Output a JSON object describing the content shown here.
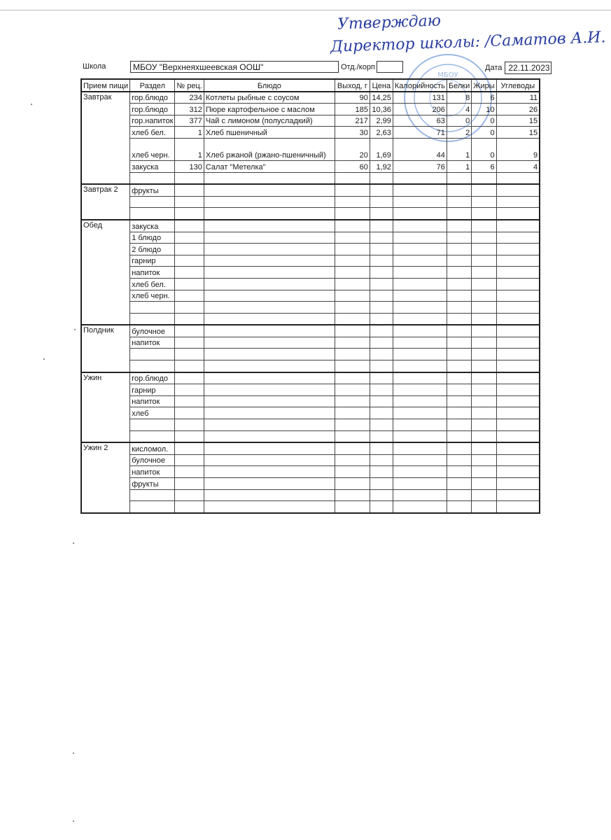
{
  "approval": {
    "line1": "Утверждаю",
    "line2": "Директор школы: /Саматов А.И."
  },
  "header": {
    "school_label": "Школа",
    "school_value": "МБОУ \"Верхнеяхшеевская ООШ\"",
    "dept_label": "Отд./корп",
    "dept_value": "",
    "date_label": "Дата",
    "date_value": "22.11.2023"
  },
  "stamp": {
    "text": "МБОУ",
    "color": "#4a7fd0"
  },
  "table": {
    "columns": [
      "Прием пищи",
      "Раздел",
      "№ рец.",
      "Блюдо",
      "Выход, г",
      "Цена",
      "Калорийность",
      "Белки",
      "Жиры",
      "Углеводы"
    ],
    "blocks": [
      {
        "meal": "Завтрак",
        "rows": [
          {
            "section": "гор.блюдо",
            "recipe": "234",
            "dish": "Котлеты рыбные с соусом",
            "yield": "90",
            "price": "14,25",
            "kcal": "131",
            "protein": "8",
            "fat": "6",
            "carbs": "11"
          },
          {
            "section": "гор.блюдо",
            "recipe": "312",
            "dish": "Пюре картофельное с маслом",
            "yield": "185",
            "price": "10,36",
            "kcal": "206",
            "protein": "4",
            "fat": "10",
            "carbs": "26"
          },
          {
            "section": "гор.напиток",
            "recipe": "377",
            "dish": "Чай с лимоном (полусладкий)",
            "yield": "217",
            "price": "2,99",
            "kcal": "63",
            "protein": "0",
            "fat": "0",
            "carbs": "15"
          },
          {
            "section": "хлеб бел.",
            "recipe": "1",
            "dish": "Хлеб пшеничный",
            "yield": "30",
            "price": "2,63",
            "kcal": "71",
            "protein": "2",
            "fat": "0",
            "carbs": "15"
          },
          {
            "section": "хлеб черн.",
            "recipe": "1",
            "dish": "Хлеб ржаной (ржано-пшеничный)",
            "yield": "20",
            "price": "1,69",
            "kcal": "44",
            "protein": "1",
            "fat": "0",
            "carbs": "9",
            "tall": true
          },
          {
            "section": "закуска",
            "recipe": "130",
            "dish": "Салат \"Метелка\"",
            "yield": "60",
            "price": "1,92",
            "kcal": "76",
            "protein": "1",
            "fat": "6",
            "carbs": "4"
          },
          {
            "section": ""
          }
        ]
      },
      {
        "meal": "Завтрак 2",
        "rows": [
          {
            "section": "фрукты"
          },
          {
            "section": ""
          },
          {
            "section": ""
          }
        ]
      },
      {
        "meal": "Обед",
        "rows": [
          {
            "section": "закуска"
          },
          {
            "section": "1 блюдо"
          },
          {
            "section": "2 блюдо"
          },
          {
            "section": "гарнир"
          },
          {
            "section": "напиток"
          },
          {
            "section": "хлеб бел."
          },
          {
            "section": "хлеб черн."
          },
          {
            "section": ""
          },
          {
            "section": ""
          }
        ]
      },
      {
        "meal": "Полдник",
        "rows": [
          {
            "section": "булочное"
          },
          {
            "section": "напиток"
          },
          {
            "section": ""
          },
          {
            "section": ""
          }
        ]
      },
      {
        "meal": "Ужин",
        "rows": [
          {
            "section": "гор.блюдо"
          },
          {
            "section": "гарнир"
          },
          {
            "section": "напиток"
          },
          {
            "section": "хлеб"
          },
          {
            "section": ""
          },
          {
            "section": ""
          }
        ]
      },
      {
        "meal": "Ужин 2",
        "rows": [
          {
            "section": "кисломол."
          },
          {
            "section": "булочное"
          },
          {
            "section": "напиток"
          },
          {
            "section": "фрукты"
          },
          {
            "section": ""
          },
          {
            "section": ""
          }
        ]
      }
    ]
  }
}
